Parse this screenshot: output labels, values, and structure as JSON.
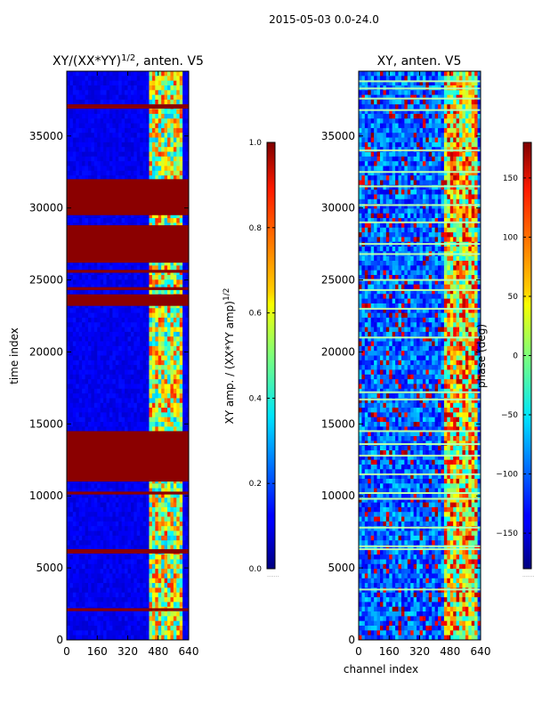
{
  "suptitle": "2015-05-03 0.0-24.0",
  "chart_data": [
    {
      "type": "heatmap",
      "title": "XY/(XX*YY)^{1/2}, anten. V5",
      "title_parts": {
        "prefix": "XY/(XX*YY)",
        "exponent": "1/2",
        "suffix": ", anten. V5"
      },
      "xlabel": "",
      "ylabel": "time index",
      "xlim": [
        0,
        640
      ],
      "ylim": [
        0,
        39500
      ],
      "xticks": [
        0,
        160,
        320,
        480,
        640
      ],
      "yticks": [
        0,
        5000,
        10000,
        15000,
        20000,
        25000,
        30000,
        35000
      ],
      "colormap": "jet",
      "colorbar": {
        "label": "XY amp. / (XX*YY amp)^{1/2}",
        "label_parts": {
          "prefix": "XY amp. / (XX*YY amp)",
          "exponent": "1/2"
        },
        "range": [
          0.0,
          1.0
        ],
        "ticks": [
          "0.0",
          "0.2",
          "0.4",
          "0.6",
          "0.8",
          "1.0"
        ]
      },
      "saturated_rows_time_index": [
        [
          2000,
          2200
        ],
        [
          6000,
          6300
        ],
        [
          10100,
          10300
        ],
        [
          11000,
          14500
        ],
        [
          23200,
          24000
        ],
        [
          24300,
          24500
        ],
        [
          25500,
          25700
        ],
        [
          26200,
          28800
        ],
        [
          29500,
          32000
        ],
        [
          36900,
          37200
        ]
      ]
    },
    {
      "type": "heatmap",
      "title": "XY, anten. V5",
      "xlabel": "channel index",
      "ylabel": "",
      "xlim": [
        0,
        640
      ],
      "ylim": [
        0,
        39500
      ],
      "xticks": [
        0,
        160,
        320,
        480,
        640
      ],
      "yticks": [
        0,
        5000,
        10000,
        15000,
        20000,
        25000,
        30000,
        35000
      ],
      "colormap": "jet",
      "colorbar": {
        "label": "phase (deg)",
        "range": [
          -180,
          180
        ],
        "ticks": [
          "150",
          "100",
          "50",
          "0",
          "−50",
          "−100",
          "−150"
        ]
      },
      "bright_rows_time_index": [
        3500,
        6300,
        6500,
        7800,
        9800,
        10200,
        11500,
        12800,
        13600,
        14500,
        16700,
        17200,
        21000,
        23000,
        24300,
        25000,
        26800,
        27500,
        29000,
        30200,
        31500,
        32500,
        34000,
        36800,
        37600,
        38300,
        38800
      ]
    }
  ],
  "icons": {
    "colorbar_marker": "dotted-tick-icon"
  }
}
